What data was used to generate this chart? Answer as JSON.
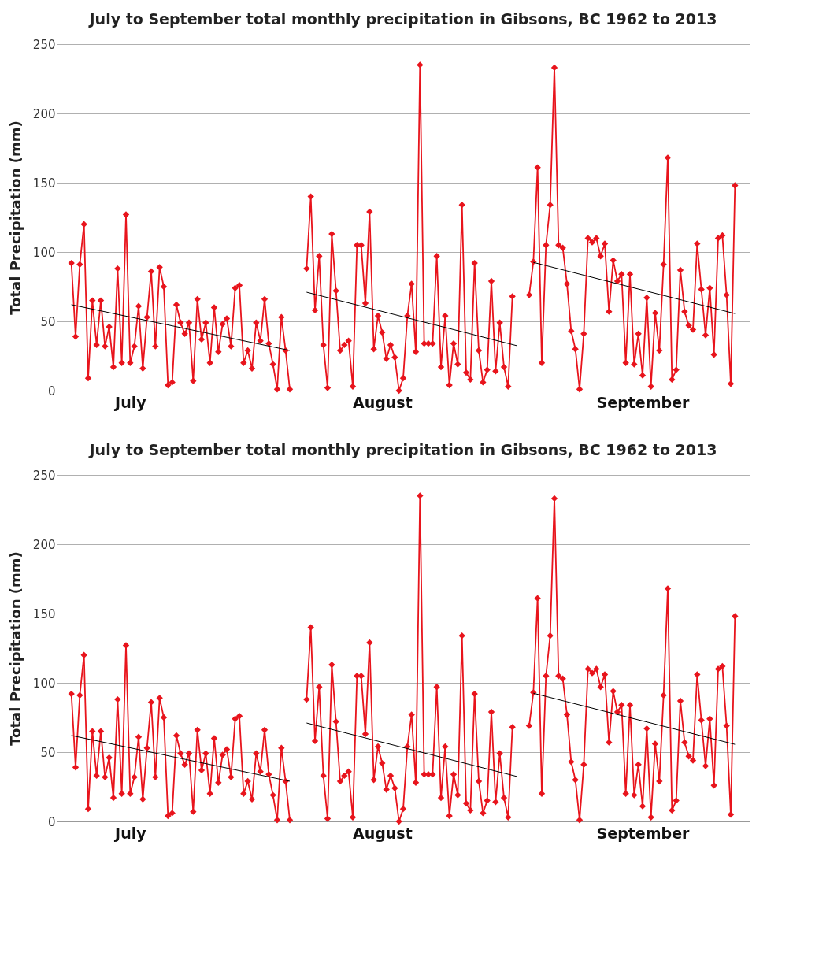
{
  "chart_data": [
    {
      "type": "line",
      "title": "July to September total monthly precipitation in Gibsons, BC 1962 to 2013",
      "ylabel": "Total Precipitation (mm)",
      "categories": [
        null,
        null,
        null,
        null,
        null,
        null,
        null,
        null,
        null,
        null,
        null,
        null,
        null,
        null,
        "July",
        null,
        null,
        null,
        null,
        null,
        null,
        null,
        null,
        null,
        null,
        null,
        null,
        null,
        null,
        null,
        null,
        null,
        null,
        null,
        null,
        null,
        null,
        null,
        null,
        null,
        null,
        null,
        null,
        null,
        null,
        null,
        null,
        null,
        null,
        null,
        null,
        null,
        null,
        null,
        null,
        null,
        null,
        null,
        null,
        null,
        null,
        null,
        null,
        null,
        null,
        null,
        null,
        null,
        null,
        null,
        null,
        null,
        null,
        null,
        "August",
        null,
        null,
        null,
        null,
        null,
        null,
        null,
        null,
        null,
        null,
        null,
        null,
        null,
        null,
        null,
        null,
        null,
        null,
        null,
        null,
        null,
        null,
        null,
        null,
        null,
        null,
        null,
        null,
        null,
        null,
        null,
        null,
        null,
        null,
        null,
        null,
        null,
        null,
        null,
        null,
        null,
        null,
        null,
        null,
        null,
        null,
        null,
        null,
        null,
        null,
        null,
        null,
        null,
        null,
        null,
        null,
        null,
        null,
        null,
        null,
        null,
        "September",
        null,
        null,
        null,
        null,
        null,
        null,
        null,
        null,
        null,
        null,
        null,
        null,
        null,
        null,
        null,
        null,
        null,
        null,
        null,
        null,
        null,
        null
      ],
      "ylim": [
        0,
        250
      ],
      "yticks": [
        0,
        50,
        100,
        150,
        200,
        250
      ],
      "grid": "y",
      "legend": false,
      "marker": "diamond",
      "series": [
        {
          "color": "#e8141c",
          "values": [
            92,
            39,
            91,
            120,
            9,
            65,
            33,
            65,
            32,
            46,
            17,
            88,
            20,
            127,
            20,
            32,
            61,
            16,
            53,
            86,
            32,
            89,
            75,
            4,
            6,
            62,
            49,
            41,
            49,
            7,
            66,
            37,
            49,
            20,
            60,
            28,
            48,
            52,
            32,
            74,
            76,
            20,
            29,
            16,
            49,
            36,
            66,
            34,
            19,
            1,
            53,
            29,
            1,
            null,
            null,
            null,
            88,
            140,
            58,
            97,
            33,
            2,
            113,
            72,
            29,
            33,
            36,
            3,
            105,
            105,
            63,
            129,
            30,
            54,
            42,
            23,
            33,
            24,
            0,
            9,
            54,
            77,
            28,
            235,
            34,
            34,
            34,
            97,
            17,
            54,
            4,
            34,
            19,
            134,
            13,
            8,
            92,
            29,
            6,
            15,
            79,
            14,
            49,
            17,
            3,
            68,
            null,
            null,
            null,
            69,
            93,
            161,
            20,
            105,
            134,
            233,
            105,
            103,
            77,
            43,
            30,
            1,
            41,
            110,
            107,
            110,
            97,
            106,
            57,
            94,
            79,
            84,
            20,
            84,
            19,
            41,
            11,
            67,
            3,
            56,
            29,
            91,
            168,
            8,
            15,
            87,
            57,
            47,
            44,
            106,
            73,
            40,
            74,
            26,
            110,
            112,
            69,
            5,
            148
          ]
        },
        {
          "marker": "none",
          "color": "#000000",
          "values": [
            62,
            null,
            null,
            null,
            null,
            null,
            null,
            null,
            null,
            null,
            null,
            null,
            null,
            null,
            null,
            null,
            null,
            null,
            null,
            null,
            null,
            null,
            null,
            null,
            null,
            null,
            null,
            null,
            null,
            null,
            null,
            null,
            null,
            null,
            null,
            null,
            null,
            null,
            null,
            null,
            null,
            null,
            null,
            null,
            null,
            null,
            null,
            null,
            null,
            null,
            null,
            null,
            29,
            null,
            null,
            null,
            null,
            null,
            null,
            null,
            null,
            null,
            null,
            null,
            null,
            null,
            null,
            null,
            null,
            null,
            null,
            null,
            null,
            null,
            null,
            null,
            null,
            null,
            null,
            null,
            null,
            null,
            null,
            null,
            null,
            null,
            null,
            null,
            null,
            null,
            null,
            null,
            null,
            null,
            null,
            null,
            null,
            null,
            null,
            null,
            null,
            null,
            null,
            null,
            null,
            null,
            null,
            null,
            null,
            null,
            null,
            null,
            null,
            null,
            null,
            null,
            null,
            null,
            null,
            null,
            null,
            null,
            null,
            null,
            null,
            null,
            null,
            null,
            null,
            null,
            null,
            null,
            null,
            null,
            null,
            null,
            null,
            null,
            null,
            null,
            null,
            null,
            null,
            null,
            null,
            null,
            null,
            null,
            null,
            null,
            null,
            null,
            null,
            null,
            null,
            null,
            null,
            null,
            null
          ]
        },
        {
          "marker": "none",
          "color": "#000000",
          "values": [
            null,
            null,
            null,
            null,
            null,
            null,
            null,
            null,
            null,
            null,
            null,
            null,
            null,
            null,
            null,
            null,
            null,
            null,
            null,
            null,
            null,
            null,
            null,
            null,
            null,
            null,
            null,
            null,
            null,
            null,
            null,
            null,
            null,
            null,
            null,
            null,
            null,
            null,
            null,
            null,
            null,
            null,
            null,
            null,
            null,
            null,
            null,
            null,
            null,
            null,
            null,
            null,
            null,
            null,
            null,
            null,
            71,
            null,
            null,
            null,
            null,
            null,
            null,
            null,
            null,
            null,
            null,
            null,
            null,
            null,
            null,
            null,
            null,
            null,
            null,
            null,
            null,
            null,
            null,
            null,
            null,
            null,
            null,
            null,
            null,
            null,
            null,
            null,
            null,
            null,
            null,
            null,
            null,
            null,
            null,
            null,
            null,
            null,
            null,
            null,
            null,
            null,
            null,
            null,
            null,
            null,
            32.5,
            null,
            null,
            null,
            null,
            null,
            null,
            null,
            null,
            null,
            null,
            null,
            null,
            null,
            null,
            null,
            null,
            null,
            null,
            null,
            null,
            null,
            null,
            null,
            null,
            null,
            null,
            null,
            null,
            null,
            null,
            null,
            null,
            null,
            null,
            null,
            null,
            null,
            null,
            null,
            null,
            null,
            null,
            null,
            null,
            null,
            null,
            null,
            null,
            null,
            null,
            null,
            null
          ]
        },
        {
          "marker": "none",
          "color": "#000000",
          "values": [
            null,
            null,
            null,
            null,
            null,
            null,
            null,
            null,
            null,
            null,
            null,
            null,
            null,
            null,
            null,
            null,
            null,
            null,
            null,
            null,
            null,
            null,
            null,
            null,
            null,
            null,
            null,
            null,
            null,
            null,
            null,
            null,
            null,
            null,
            null,
            null,
            null,
            null,
            null,
            null,
            null,
            null,
            null,
            null,
            null,
            null,
            null,
            null,
            null,
            null,
            null,
            null,
            null,
            null,
            null,
            null,
            null,
            null,
            null,
            null,
            null,
            null,
            null,
            null,
            null,
            null,
            null,
            null,
            null,
            null,
            null,
            null,
            null,
            null,
            null,
            null,
            null,
            null,
            null,
            null,
            null,
            null,
            null,
            null,
            null,
            null,
            null,
            null,
            null,
            null,
            null,
            null,
            null,
            null,
            null,
            null,
            null,
            null,
            null,
            null,
            null,
            null,
            null,
            null,
            null,
            null,
            null,
            null,
            null,
            null,
            92.5,
            null,
            null,
            null,
            null,
            null,
            null,
            null,
            null,
            null,
            null,
            null,
            null,
            null,
            null,
            null,
            null,
            null,
            null,
            null,
            null,
            null,
            null,
            null,
            null,
            null,
            null,
            null,
            null,
            null,
            null,
            null,
            null,
            null,
            null,
            null,
            null,
            null,
            null,
            null,
            null,
            null,
            null,
            null,
            null,
            null,
            null,
            null,
            55.6
          ]
        }
      ]
    },
    {
      "type": "line",
      "title": "July to September total monthly precipitation in Gibsons, BC 1962 to 2013",
      "ylabel": "Total Precipitation (mm)",
      "categories": [
        null,
        null,
        null,
        null,
        null,
        null,
        null,
        null,
        null,
        null,
        null,
        null,
        null,
        null,
        "July",
        null,
        null,
        null,
        null,
        null,
        null,
        null,
        null,
        null,
        null,
        null,
        null,
        null,
        null,
        null,
        null,
        null,
        null,
        null,
        null,
        null,
        null,
        null,
        null,
        null,
        null,
        null,
        null,
        null,
        null,
        null,
        null,
        null,
        null,
        null,
        null,
        null,
        null,
        null,
        null,
        null,
        null,
        null,
        null,
        null,
        null,
        null,
        null,
        null,
        null,
        null,
        null,
        null,
        null,
        null,
        null,
        null,
        null,
        null,
        "August",
        null,
        null,
        null,
        null,
        null,
        null,
        null,
        null,
        null,
        null,
        null,
        null,
        null,
        null,
        null,
        null,
        null,
        null,
        null,
        null,
        null,
        null,
        null,
        null,
        null,
        null,
        null,
        null,
        null,
        null,
        null,
        null,
        null,
        null,
        null,
        null,
        null,
        null,
        null,
        null,
        null,
        null,
        null,
        null,
        null,
        null,
        null,
        null,
        null,
        null,
        null,
        null,
        null,
        null,
        null,
        null,
        null,
        null,
        null,
        null,
        null,
        "September",
        null,
        null,
        null,
        null,
        null,
        null,
        null,
        null,
        null,
        null,
        null,
        null,
        null,
        null,
        null,
        null,
        null,
        null,
        null,
        null,
        null,
        null
      ],
      "ylim": [
        0,
        250
      ],
      "yticks": [
        0,
        50,
        100,
        150,
        200,
        250
      ],
      "grid": "y",
      "legend": false,
      "marker": "diamond",
      "series": [
        {
          "color": "#e8141c",
          "values": [
            92,
            39,
            91,
            120,
            9,
            65,
            33,
            65,
            32,
            46,
            17,
            88,
            20,
            127,
            20,
            32,
            61,
            16,
            53,
            86,
            32,
            89,
            75,
            4,
            6,
            62,
            49,
            41,
            49,
            7,
            66,
            37,
            49,
            20,
            60,
            28,
            48,
            52,
            32,
            74,
            76,
            20,
            29,
            16,
            49,
            36,
            66,
            34,
            19,
            1,
            53,
            29,
            1,
            null,
            null,
            null,
            88,
            140,
            58,
            97,
            33,
            2,
            113,
            72,
            29,
            33,
            36,
            3,
            105,
            105,
            63,
            129,
            30,
            54,
            42,
            23,
            33,
            24,
            0,
            9,
            54,
            77,
            28,
            235,
            34,
            34,
            34,
            97,
            17,
            54,
            4,
            34,
            19,
            134,
            13,
            8,
            92,
            29,
            6,
            15,
            79,
            14,
            49,
            17,
            3,
            68,
            null,
            null,
            null,
            69,
            93,
            161,
            20,
            105,
            134,
            233,
            105,
            103,
            77,
            43,
            30,
            1,
            41,
            110,
            107,
            110,
            97,
            106,
            57,
            94,
            79,
            84,
            20,
            84,
            19,
            41,
            11,
            67,
            3,
            56,
            29,
            91,
            168,
            8,
            15,
            87,
            57,
            47,
            44,
            106,
            73,
            40,
            74,
            26,
            110,
            112,
            69,
            5,
            148
          ]
        },
        {
          "marker": "none",
          "color": "#000000",
          "values": [
            62,
            null,
            null,
            null,
            null,
            null,
            null,
            null,
            null,
            null,
            null,
            null,
            null,
            null,
            null,
            null,
            null,
            null,
            null,
            null,
            null,
            null,
            null,
            null,
            null,
            null,
            null,
            null,
            null,
            null,
            null,
            null,
            null,
            null,
            null,
            null,
            null,
            null,
            null,
            null,
            null,
            null,
            null,
            null,
            null,
            null,
            null,
            null,
            null,
            null,
            null,
            null,
            29,
            null,
            null,
            null,
            null,
            null,
            null,
            null,
            null,
            null,
            null,
            null,
            null,
            null,
            null,
            null,
            null,
            null,
            null,
            null,
            null,
            null,
            null,
            null,
            null,
            null,
            null,
            null,
            null,
            null,
            null,
            null,
            null,
            null,
            null,
            null,
            null,
            null,
            null,
            null,
            null,
            null,
            null,
            null,
            null,
            null,
            null,
            null,
            null,
            null,
            null,
            null,
            null,
            null,
            null,
            null,
            null,
            null,
            null,
            null,
            null,
            null,
            null,
            null,
            null,
            null,
            null,
            null,
            null,
            null,
            null,
            null,
            null,
            null,
            null,
            null,
            null,
            null,
            null,
            null,
            null,
            null,
            null,
            null,
            null,
            null,
            null,
            null,
            null,
            null,
            null,
            null,
            null,
            null,
            null,
            null,
            null,
            null,
            null,
            null,
            null,
            null,
            null,
            null,
            null,
            null,
            null
          ]
        },
        {
          "marker": "none",
          "color": "#000000",
          "values": [
            null,
            null,
            null,
            null,
            null,
            null,
            null,
            null,
            null,
            null,
            null,
            null,
            null,
            null,
            null,
            null,
            null,
            null,
            null,
            null,
            null,
            null,
            null,
            null,
            null,
            null,
            null,
            null,
            null,
            null,
            null,
            null,
            null,
            null,
            null,
            null,
            null,
            null,
            null,
            null,
            null,
            null,
            null,
            null,
            null,
            null,
            null,
            null,
            null,
            null,
            null,
            null,
            null,
            null,
            null,
            null,
            71,
            null,
            null,
            null,
            null,
            null,
            null,
            null,
            null,
            null,
            null,
            null,
            null,
            null,
            null,
            null,
            null,
            null,
            null,
            null,
            null,
            null,
            null,
            null,
            null,
            null,
            null,
            null,
            null,
            null,
            null,
            null,
            null,
            null,
            null,
            null,
            null,
            null,
            null,
            null,
            null,
            null,
            null,
            null,
            null,
            null,
            null,
            null,
            null,
            null,
            32.5,
            null,
            null,
            null,
            null,
            null,
            null,
            null,
            null,
            null,
            null,
            null,
            null,
            null,
            null,
            null,
            null,
            null,
            null,
            null,
            null,
            null,
            null,
            null,
            null,
            null,
            null,
            null,
            null,
            null,
            null,
            null,
            null,
            null,
            null,
            null,
            null,
            null,
            null,
            null,
            null,
            null,
            null,
            null,
            null,
            null,
            null,
            null,
            null,
            null,
            null,
            null,
            null
          ]
        },
        {
          "marker": "none",
          "color": "#000000",
          "values": [
            null,
            null,
            null,
            null,
            null,
            null,
            null,
            null,
            null,
            null,
            null,
            null,
            null,
            null,
            null,
            null,
            null,
            null,
            null,
            null,
            null,
            null,
            null,
            null,
            null,
            null,
            null,
            null,
            null,
            null,
            null,
            null,
            null,
            null,
            null,
            null,
            null,
            null,
            null,
            null,
            null,
            null,
            null,
            null,
            null,
            null,
            null,
            null,
            null,
            null,
            null,
            null,
            null,
            null,
            null,
            null,
            null,
            null,
            null,
            null,
            null,
            null,
            null,
            null,
            null,
            null,
            null,
            null,
            null,
            null,
            null,
            null,
            null,
            null,
            null,
            null,
            null,
            null,
            null,
            null,
            null,
            null,
            null,
            null,
            null,
            null,
            null,
            null,
            null,
            null,
            null,
            null,
            null,
            null,
            null,
            null,
            null,
            null,
            null,
            null,
            null,
            null,
            null,
            null,
            null,
            null,
            null,
            null,
            null,
            null,
            92.5,
            null,
            null,
            null,
            null,
            null,
            null,
            null,
            null,
            null,
            null,
            null,
            null,
            null,
            null,
            null,
            null,
            null,
            null,
            null,
            null,
            null,
            null,
            null,
            null,
            null,
            null,
            null,
            null,
            null,
            null,
            null,
            null,
            null,
            null,
            null,
            null,
            null,
            null,
            null,
            null,
            null,
            null,
            null,
            null,
            null,
            null,
            null,
            55.6
          ]
        }
      ]
    }
  ]
}
